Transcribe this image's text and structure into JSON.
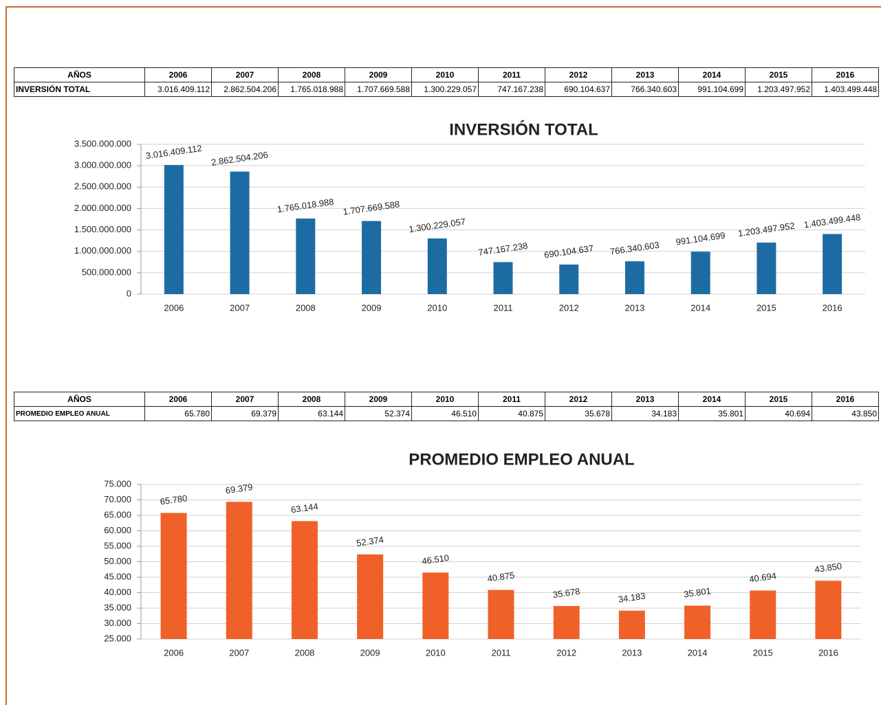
{
  "tables": [
    {
      "header": [
        "AÑOS",
        "2006",
        "2007",
        "2008",
        "2009",
        "2010",
        "2011",
        "2012",
        "2013",
        "2014",
        "2015",
        "2016"
      ],
      "row": [
        "INVERSIÓN TOTAL",
        "3.016.409.112",
        "2.862.504.206",
        "1.765.018.988",
        "1.707.669.588",
        "1.300.229.057",
        "747.167.238",
        "690.104.637",
        "766.340.603",
        "991.104.699",
        "1.203.497.952",
        "1.403.499.448"
      ]
    },
    {
      "header": [
        "AÑOS",
        "2006",
        "2007",
        "2008",
        "2009",
        "2010",
        "2011",
        "2012",
        "2013",
        "2014",
        "2015",
        "2016"
      ],
      "row": [
        "PROMEDIO EMPLEO ANUAL",
        "65.780",
        "69.379",
        "63.144",
        "52.374",
        "46.510",
        "40.875",
        "35.678",
        "34.183",
        "35.801",
        "40.694",
        "43.850"
      ]
    }
  ],
  "chart_data": [
    {
      "type": "bar",
      "title": "INVERSIÓN TOTAL",
      "categories": [
        "2006",
        "2007",
        "2008",
        "2009",
        "2010",
        "2011",
        "2012",
        "2013",
        "2014",
        "2015",
        "2016"
      ],
      "values": [
        3016409112,
        2862504206,
        1765018988,
        1707669588,
        1300229057,
        747167238,
        690104637,
        766340603,
        991104699,
        1203497952,
        1403499448
      ],
      "value_labels": [
        "3.016.409.112",
        "2.862.504.206",
        "1.765.018.988",
        "1.707.669.588",
        "1.300.229.057",
        "747.167.238",
        "690.104.637",
        "766.340.603",
        "991.104.699",
        "1.203.497.952",
        "1.403.499.448"
      ],
      "color": "#1c6ca3",
      "ylim": [
        0,
        3500000000
      ],
      "yticks": [
        0,
        {
          "value": 500000000,
          "label": "500.000.000"
        },
        {
          "value": 1000000000,
          "label": "1.000.000.000"
        },
        {
          "value": 1500000000,
          "label": "1.500.000.000"
        },
        {
          "value": 2000000000,
          "label": "2.000.000.000"
        },
        {
          "value": 2500000000,
          "label": "2.500.000.000"
        },
        {
          "value": 3000000000,
          "label": "3.000.000.000"
        },
        {
          "value": 3500000000,
          "label": "3.500.000.000"
        }
      ],
      "grid": true
    },
    {
      "type": "bar",
      "title": "PROMEDIO EMPLEO ANUAL",
      "categories": [
        "2006",
        "2007",
        "2008",
        "2009",
        "2010",
        "2011",
        "2012",
        "2013",
        "2014",
        "2015",
        "2016"
      ],
      "values": [
        65780,
        69379,
        63144,
        52374,
        46510,
        40875,
        35678,
        34183,
        35801,
        40694,
        43850
      ],
      "value_labels": [
        "65.780",
        "69.379",
        "63.144",
        "52.374",
        "46.510",
        "40.875",
        "35.678",
        "34.183",
        "35.801",
        "40.694",
        "43.850"
      ],
      "color": "#f0612a",
      "ylim": [
        25000,
        75000
      ],
      "yticks": [
        {
          "value": 25000,
          "label": "25.000"
        },
        {
          "value": 30000,
          "label": "30.000"
        },
        {
          "value": 35000,
          "label": "35.000"
        },
        {
          "value": 40000,
          "label": "40.000"
        },
        {
          "value": 45000,
          "label": "45.000"
        },
        {
          "value": 50000,
          "label": "50.000"
        },
        {
          "value": 55000,
          "label": "55.000"
        },
        {
          "value": 60000,
          "label": "60.000"
        },
        {
          "value": 65000,
          "label": "65.000"
        },
        {
          "value": 70000,
          "label": "70.000"
        },
        {
          "value": 75000,
          "label": "75.000"
        }
      ],
      "grid": true
    }
  ]
}
